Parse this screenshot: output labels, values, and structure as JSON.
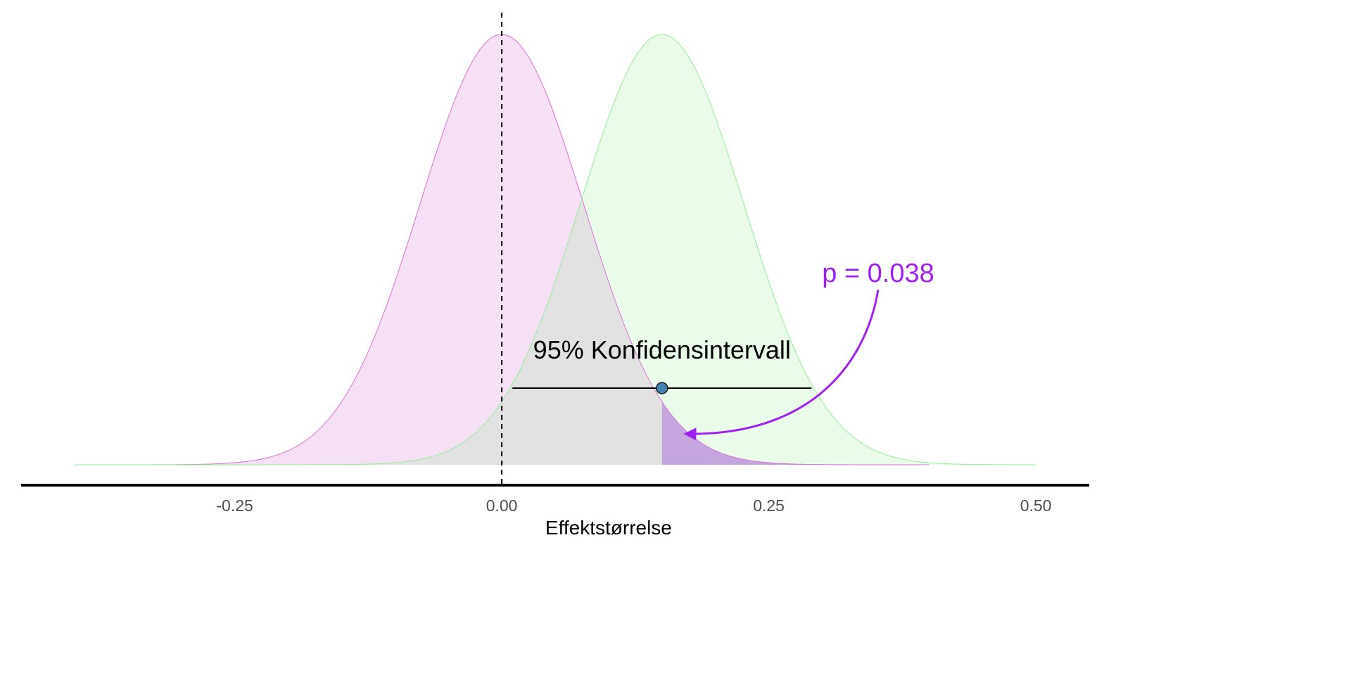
{
  "chart_data": {
    "type": "area",
    "xlabel": "Effektstørrelse",
    "xlim": [
      -0.45,
      0.55
    ],
    "x_ticks": [
      -0.25,
      0.0,
      0.25,
      0.5
    ],
    "x_tick_labels": [
      "-0.25",
      "0.00",
      "0.25",
      "0.50"
    ],
    "grid": false,
    "series": [
      {
        "mean": 0.0,
        "sd": 0.0765,
        "x_range": [
          -0.4,
          0.4
        ],
        "fill": "#f6e0f5",
        "stroke": "#da70d6"
      },
      {
        "mean": 0.15,
        "sd": 0.0765,
        "x_range": [
          -0.4,
          0.5
        ],
        "fill": "#e6fae6",
        "stroke": "#90ee90"
      }
    ],
    "overlap_fill": "#e2e2e2",
    "p_region": {
      "from": 0.15,
      "fill": "#c5a5dd"
    },
    "reference_line_x": 0.0,
    "confidence_interval": {
      "estimate": 0.15,
      "lower": 0.01,
      "upper": 0.29,
      "label": "95% Konfidensintervall",
      "point_color": "#4682b4"
    },
    "annotation": {
      "text": "p =  0.038",
      "color": "#a020f0"
    }
  }
}
